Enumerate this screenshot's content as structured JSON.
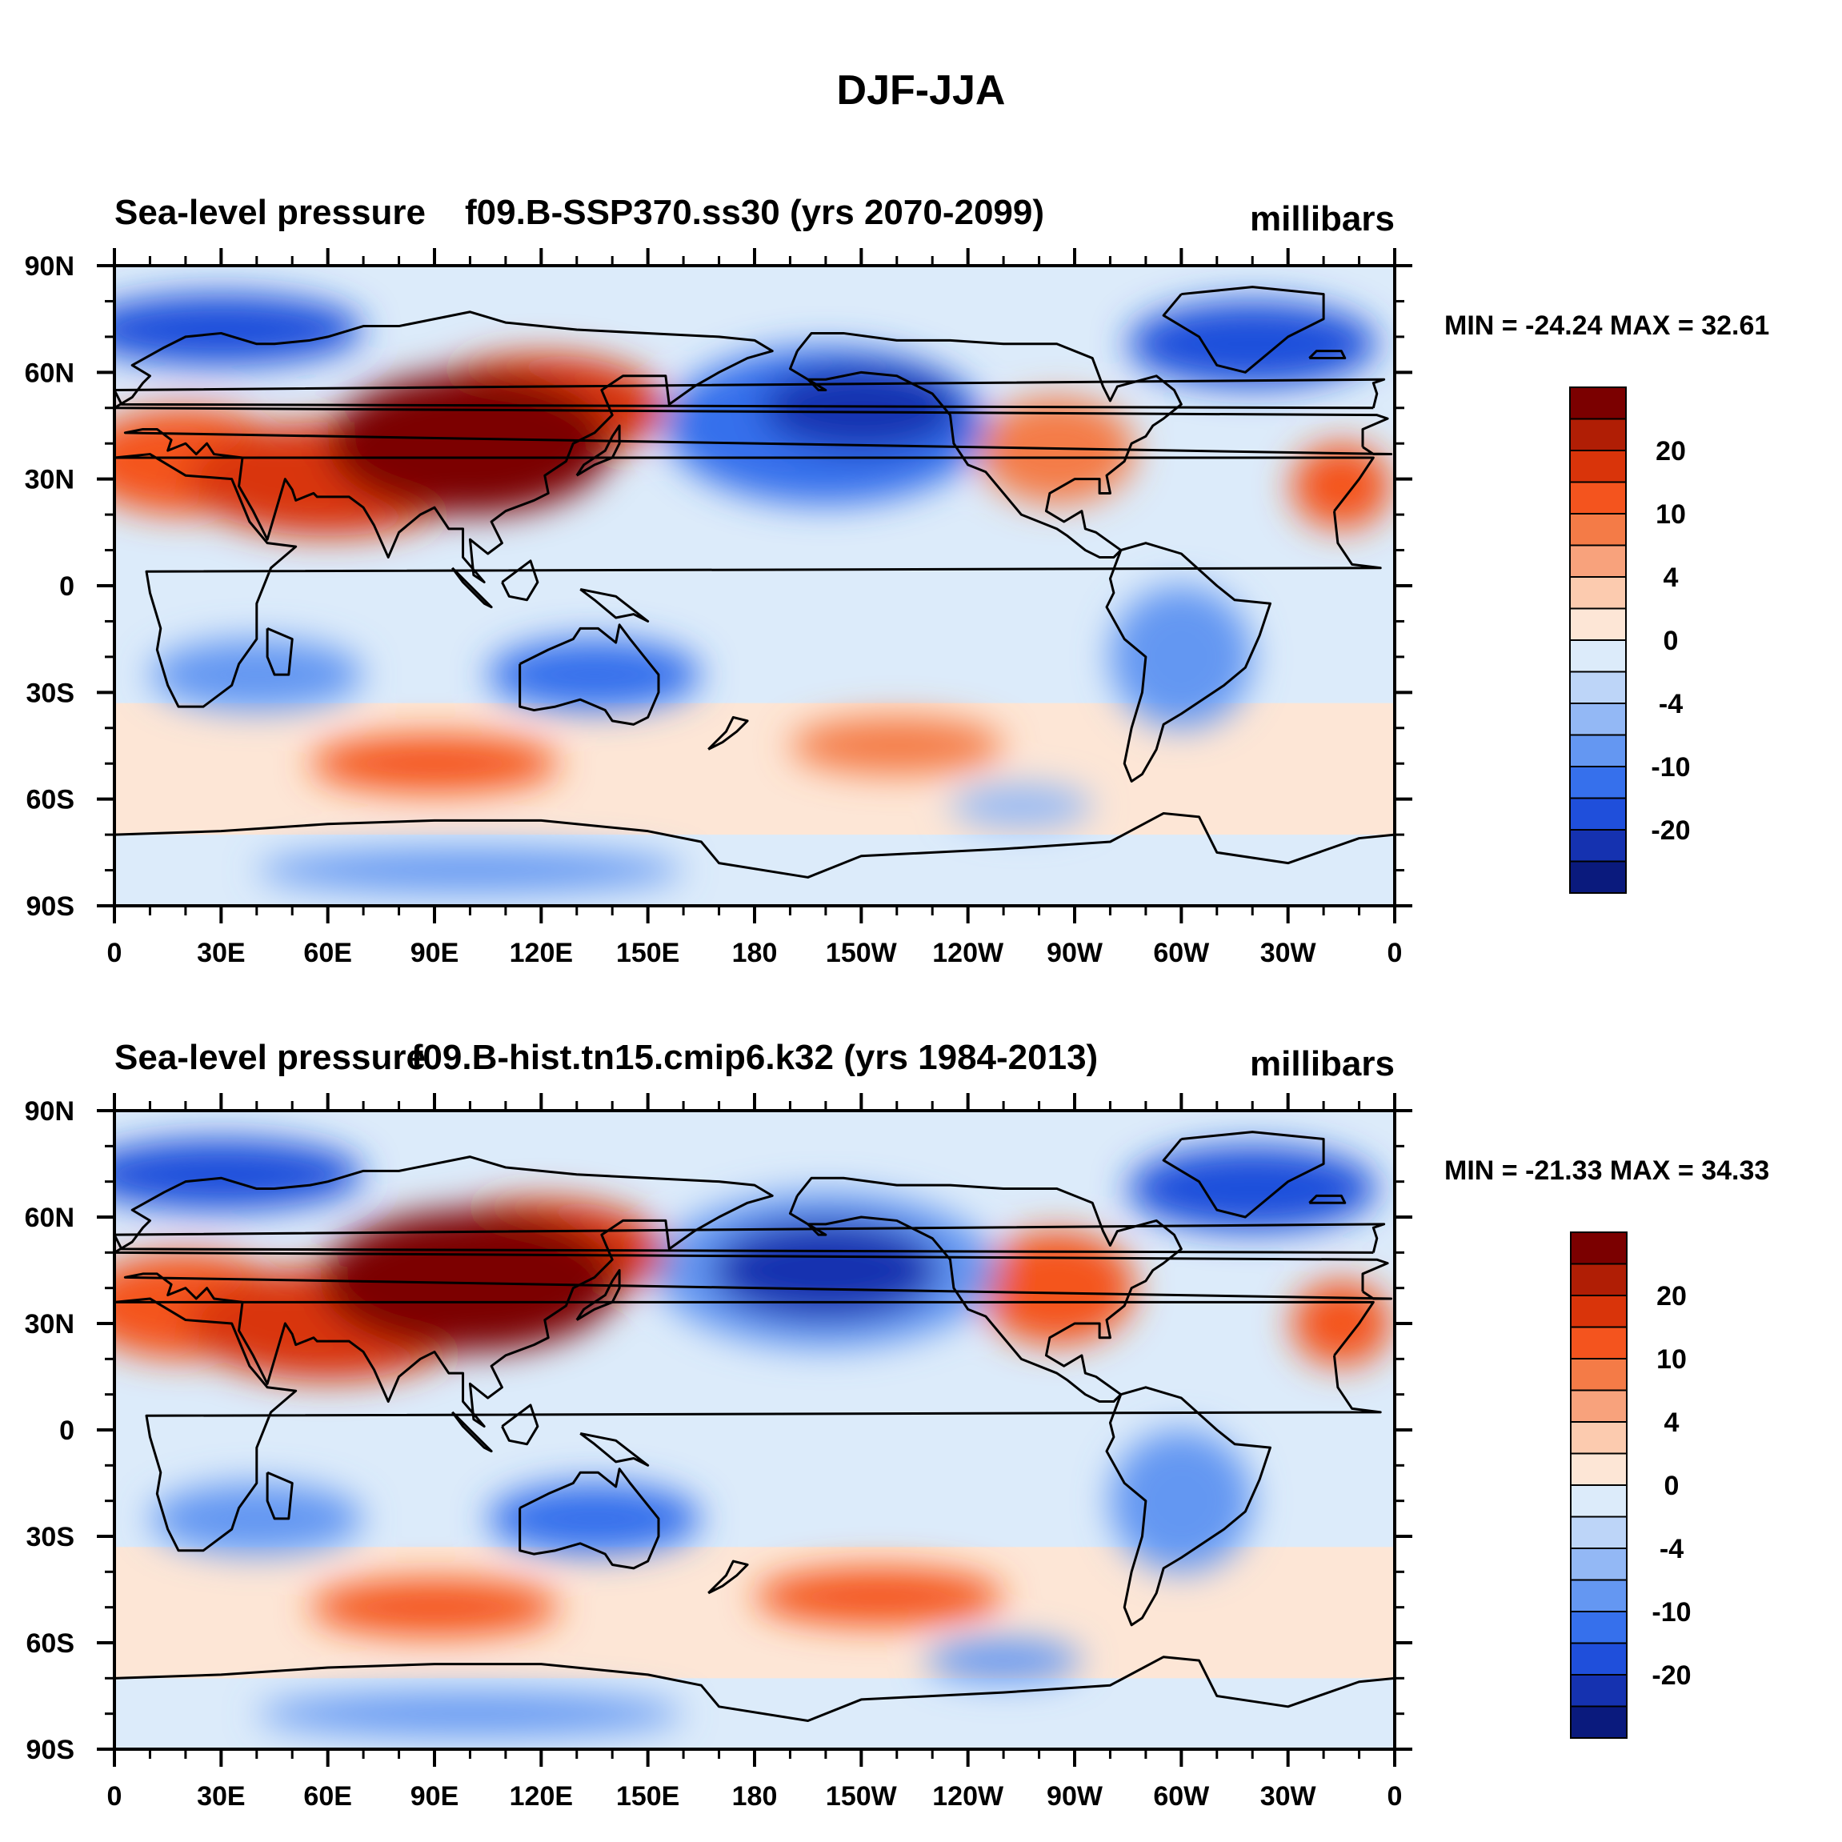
{
  "figure": {
    "title": "DJF-JJA"
  },
  "colors": {
    "coast": "#000000",
    "axis": "#000000",
    "neutral_pos": "#FDE6D6",
    "neutral_neg": "#DCEBFA"
  },
  "colorbar": {
    "labels": [
      "20",
      "10",
      "4",
      "0",
      "-4",
      "-10",
      "-20"
    ],
    "bin_colors": [
      "#7B0000",
      "#B01E05",
      "#D9340A",
      "#F4541E",
      "#F47B47",
      "#F8A27C",
      "#FCCBAF",
      "#FDE6D6",
      "#DCEBFA",
      "#BDD5F8",
      "#93B8F5",
      "#6497F2",
      "#3670EC",
      "#1F4FDB",
      "#1532B0",
      "#0A1A7D"
    ]
  },
  "chart_data": [
    {
      "type": "heatmap",
      "title_left": "Sea-level pressure",
      "title_center": "f09.B-SSP370.ss30 (yrs 2070-2099)",
      "units": "millibars",
      "stats": "MIN = -24.24 MAX =  32.61",
      "xticks": [
        "0",
        "30E",
        "60E",
        "90E",
        "120E",
        "150E",
        "180",
        "150W",
        "120W",
        "90W",
        "60W",
        "30W",
        "0"
      ],
      "yticks": [
        "90N",
        "60N",
        "30N",
        "0",
        "30S",
        "60S",
        "90S"
      ],
      "xlim": [
        0,
        360
      ],
      "ylim": [
        -90,
        90
      ],
      "min": -24.24,
      "max": 32.61,
      "features": [
        {
          "lon": 100,
          "lat": 40,
          "value": 26,
          "rlon": 40,
          "rlat": 20
        },
        {
          "lon": 120,
          "lat": 50,
          "value": 18,
          "rlon": 35,
          "rlat": 15
        },
        {
          "lon": 60,
          "lat": 30,
          "value": 16,
          "rlon": 40,
          "rlat": 16
        },
        {
          "lon": 20,
          "lat": 35,
          "value": 10,
          "rlon": 30,
          "rlat": 15
        },
        {
          "lon": 265,
          "lat": 38,
          "value": 9,
          "rlon": 22,
          "rlat": 15
        },
        {
          "lon": 345,
          "lat": 28,
          "value": 11,
          "rlon": 14,
          "rlat": 12
        },
        {
          "lon": 210,
          "lat": 50,
          "value": -24,
          "rlon": 28,
          "rlat": 12
        },
        {
          "lon": 200,
          "lat": 45,
          "value": -12,
          "rlon": 45,
          "rlat": 22
        },
        {
          "lon": 30,
          "lat": 72,
          "value": -16,
          "rlon": 40,
          "rlat": 10
        },
        {
          "lon": 320,
          "lat": 68,
          "value": -16,
          "rlon": 35,
          "rlat": 12
        },
        {
          "lon": 135,
          "lat": -25,
          "value": -13,
          "rlon": 30,
          "rlat": 10
        },
        {
          "lon": 40,
          "lat": -25,
          "value": -9,
          "rlon": 30,
          "rlat": 10
        },
        {
          "lon": 300,
          "lat": -20,
          "value": -9,
          "rlon": 20,
          "rlat": 20
        },
        {
          "lon": 90,
          "lat": -50,
          "value": 11,
          "rlon": 35,
          "rlat": 8
        },
        {
          "lon": 220,
          "lat": -45,
          "value": 9,
          "rlon": 30,
          "rlat": 8
        },
        {
          "lon": 255,
          "lat": -62,
          "value": -5,
          "rlon": 20,
          "rlat": 6
        },
        {
          "lon": 100,
          "lat": -80,
          "value": -9,
          "rlon": 60,
          "rlat": 6
        }
      ]
    },
    {
      "type": "heatmap",
      "title_left": "Sea-level pressure",
      "title_center": "f09.B-hist.tn15.cmip6.k32 (yrs 1984-2013)",
      "units": "millibars",
      "stats": "MIN = -21.33 MAX =  34.33",
      "xticks": [
        "0",
        "30E",
        "60E",
        "90E",
        "120E",
        "150E",
        "180",
        "150W",
        "120W",
        "90W",
        "60W",
        "30W",
        "0"
      ],
      "yticks": [
        "90N",
        "60N",
        "30N",
        "0",
        "30S",
        "60S",
        "90S"
      ],
      "xlim": [
        0,
        360
      ],
      "ylim": [
        -90,
        90
      ],
      "min": -21.33,
      "max": 34.33,
      "features": [
        {
          "lon": 100,
          "lat": 42,
          "value": 28,
          "rlon": 42,
          "rlat": 20
        },
        {
          "lon": 120,
          "lat": 50,
          "value": 18,
          "rlon": 35,
          "rlat": 15
        },
        {
          "lon": 60,
          "lat": 30,
          "value": 16,
          "rlon": 40,
          "rlat": 16
        },
        {
          "lon": 20,
          "lat": 35,
          "value": 10,
          "rlon": 30,
          "rlat": 15
        },
        {
          "lon": 265,
          "lat": 40,
          "value": 10,
          "rlon": 22,
          "rlat": 16
        },
        {
          "lon": 345,
          "lat": 30,
          "value": 11,
          "rlon": 14,
          "rlat": 12
        },
        {
          "lon": 200,
          "lat": 45,
          "value": -21,
          "rlon": 32,
          "rlat": 14
        },
        {
          "lon": 200,
          "lat": 45,
          "value": -10,
          "rlon": 48,
          "rlat": 22
        },
        {
          "lon": 30,
          "lat": 72,
          "value": -16,
          "rlon": 40,
          "rlat": 10
        },
        {
          "lon": 320,
          "lat": 68,
          "value": -17,
          "rlon": 35,
          "rlat": 12
        },
        {
          "lon": 135,
          "lat": -25,
          "value": -13,
          "rlon": 30,
          "rlat": 10
        },
        {
          "lon": 40,
          "lat": -25,
          "value": -10,
          "rlon": 30,
          "rlat": 10
        },
        {
          "lon": 300,
          "lat": -20,
          "value": -9,
          "rlon": 20,
          "rlat": 20
        },
        {
          "lon": 90,
          "lat": -50,
          "value": 11,
          "rlon": 35,
          "rlat": 8
        },
        {
          "lon": 215,
          "lat": -47,
          "value": 11,
          "rlon": 35,
          "rlat": 8
        },
        {
          "lon": 250,
          "lat": -65,
          "value": -8,
          "rlon": 22,
          "rlat": 6
        },
        {
          "lon": 100,
          "lat": -80,
          "value": -9,
          "rlon": 60,
          "rlat": 6
        }
      ]
    }
  ]
}
